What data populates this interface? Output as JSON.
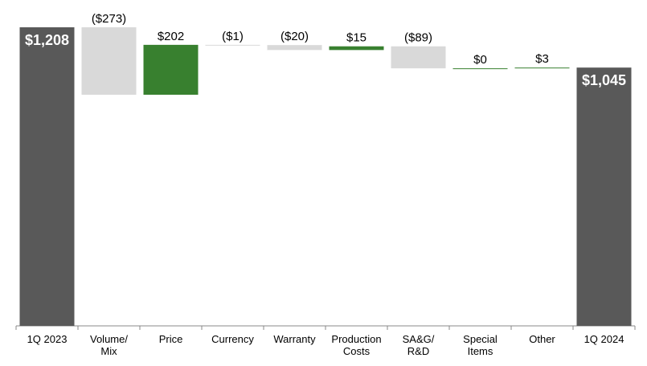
{
  "chart_data": {
    "type": "waterfall",
    "categories": [
      "1Q 2023",
      "Volume/\nMix",
      "Price",
      "Currency",
      "Warranty",
      "Production\nCosts",
      "SA&G/\nR&D",
      "Special\nItems",
      "Other",
      "1Q 2024"
    ],
    "values": [
      1208,
      -273,
      202,
      -1,
      -20,
      15,
      -89,
      0,
      3,
      1045
    ],
    "value_labels": [
      "$1,208",
      "($273)",
      "$202",
      "($1)",
      "($20)",
      "$15",
      "($89)",
      "$0",
      "$3",
      "$1,045"
    ],
    "measure": [
      "total",
      "relative",
      "relative",
      "relative",
      "relative",
      "relative",
      "relative",
      "relative",
      "relative",
      "total"
    ],
    "colors": {
      "total": "#595959",
      "increase": "#38802f",
      "decrease": "#d9d9d9"
    },
    "ylim": [
      0,
      1208
    ]
  }
}
